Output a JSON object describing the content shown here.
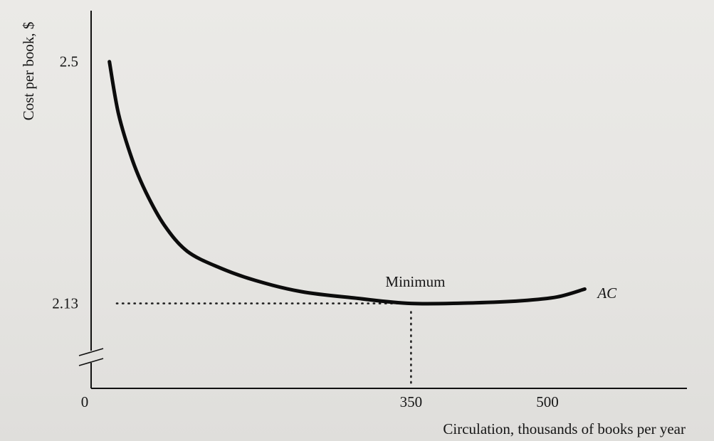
{
  "chart_data": {
    "type": "line",
    "title": "",
    "xlabel": "Circulation, thousands of books per year",
    "ylabel": "Cost per book, $",
    "x_ticks": [
      "0",
      "350",
      "500"
    ],
    "y_ticks": [
      "2.13",
      "2.5"
    ],
    "xlim": [
      0,
      600
    ],
    "ylim": [
      2.0,
      2.55
    ],
    "y_axis_break": true,
    "grid": false,
    "series": [
      {
        "name": "AC",
        "points": [
          [
            20,
            2.5
          ],
          [
            30,
            2.42
          ],
          [
            45,
            2.35
          ],
          [
            60,
            2.3
          ],
          [
            80,
            2.25
          ],
          [
            105,
            2.21
          ],
          [
            140,
            2.185
          ],
          [
            180,
            2.165
          ],
          [
            230,
            2.148
          ],
          [
            290,
            2.138
          ],
          [
            350,
            2.13
          ],
          [
            420,
            2.131
          ],
          [
            470,
            2.134
          ],
          [
            510,
            2.14
          ],
          [
            540,
            2.152
          ]
        ]
      }
    ],
    "annotations": [
      {
        "text": "Minimum",
        "x": 350,
        "y": 2.13
      },
      {
        "text": "AC",
        "x": 540,
        "y": 2.152
      }
    ],
    "reference_lines": [
      {
        "type": "horizontal",
        "y": 2.13,
        "x_from": 0,
        "x_to": 350
      },
      {
        "type": "vertical",
        "x": 350,
        "y_from": 2.0,
        "y_to": 2.13
      }
    ]
  }
}
